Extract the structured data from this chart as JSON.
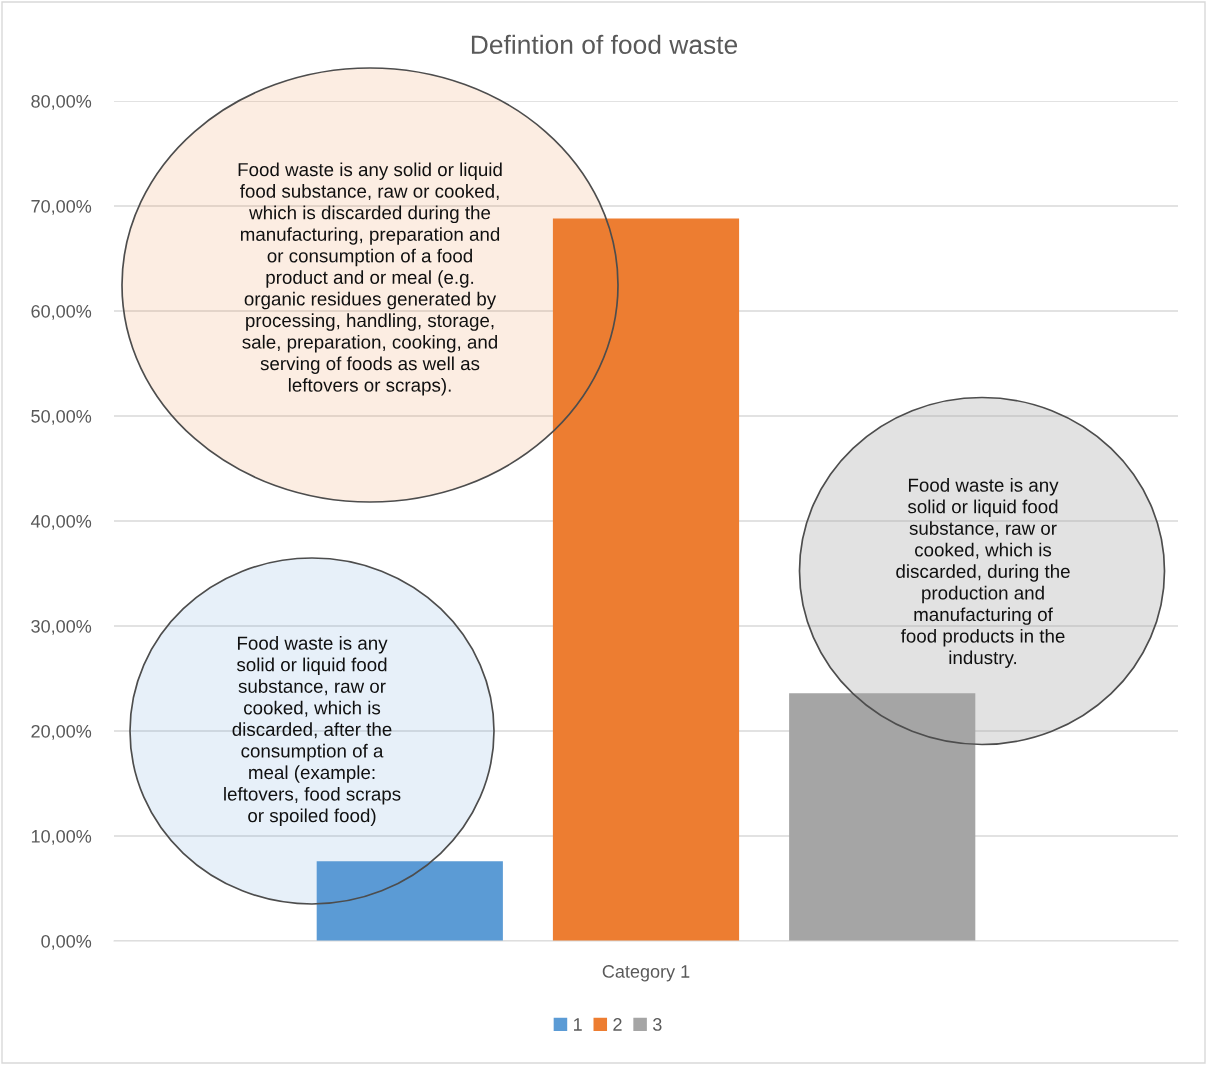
{
  "chart_data": {
    "type": "bar",
    "title": "Defintion of food waste",
    "categories": [
      "Category 1"
    ],
    "series": [
      {
        "name": "1",
        "color": "#5b9bd5",
        "values": [
          7.6
        ]
      },
      {
        "name": "2",
        "color": "#ed7d31",
        "values": [
          68.8
        ]
      },
      {
        "name": "3",
        "color": "#a5a5a5",
        "values": [
          23.6
        ]
      }
    ],
    "ylim": [
      0,
      80
    ],
    "yticks": [
      {
        "value": 0,
        "label": "0,00%"
      },
      {
        "value": 10,
        "label": "10,00%"
      },
      {
        "value": 20,
        "label": "20,00%"
      },
      {
        "value": 30,
        "label": "30,00%"
      },
      {
        "value": 40,
        "label": "40,00%"
      },
      {
        "value": 50,
        "label": "50,00%"
      },
      {
        "value": 60,
        "label": "60,00%"
      },
      {
        "value": 70,
        "label": "70,00%"
      },
      {
        "value": 80,
        "label": "80,00%"
      }
    ],
    "grid": "y",
    "legend": "bottom",
    "annotations": [
      "Food waste is any solid or liquid\nfood substance, raw or cooked,\nwhich is discarded during the\nmanufacturing, preparation and\nor consumption of a food\nproduct and or meal (e.g.\norganic residues generated by\nprocessing, handling, storage,\nsale, preparation, cooking, and\nserving of foods as well as\nleftovers or scraps).",
      "Food waste is any\nsolid or liquid food\nsubstance, raw or\ncooked, which is\ndiscarded, during the\nproduction and\nmanufacturing of\nfood products in the\nindustry.",
      "Food waste is any\nsolid or liquid food\nsubstance, raw or\ncooked, which is\ndiscarded, after the\nconsumption of a\nmeal (example:\nleftovers, food scraps\nor spoiled food)"
    ]
  }
}
